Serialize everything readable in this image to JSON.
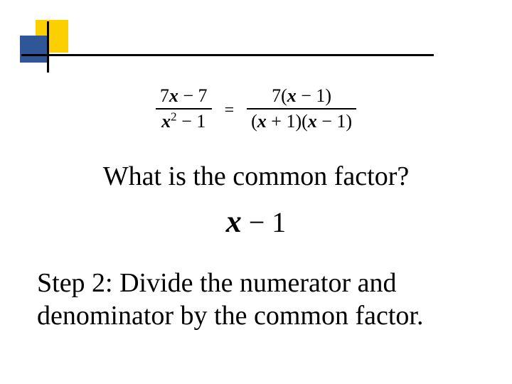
{
  "decor": {
    "yellow": "#fccf00",
    "blue": "#2f5697",
    "line": "#000000"
  },
  "equation": {
    "left_num_a": "7",
    "left_num_x": "x",
    "left_num_b": " − 7",
    "left_den_x": "x",
    "left_den_exp": "2",
    "left_den_b": " − 1",
    "eq_sign": "=",
    "right_num_a": "7(",
    "right_num_x": "x",
    "right_num_b": " − 1)",
    "right_den_a": "(",
    "right_den_x1": "x",
    "right_den_mid": " + 1)(",
    "right_den_x2": "x",
    "right_den_b": " − 1)"
  },
  "question": "What is the common factor?",
  "answer": {
    "x": "x",
    "rest": " − 1"
  },
  "step": "Step 2:  Divide the numerator and denominator by the common factor."
}
